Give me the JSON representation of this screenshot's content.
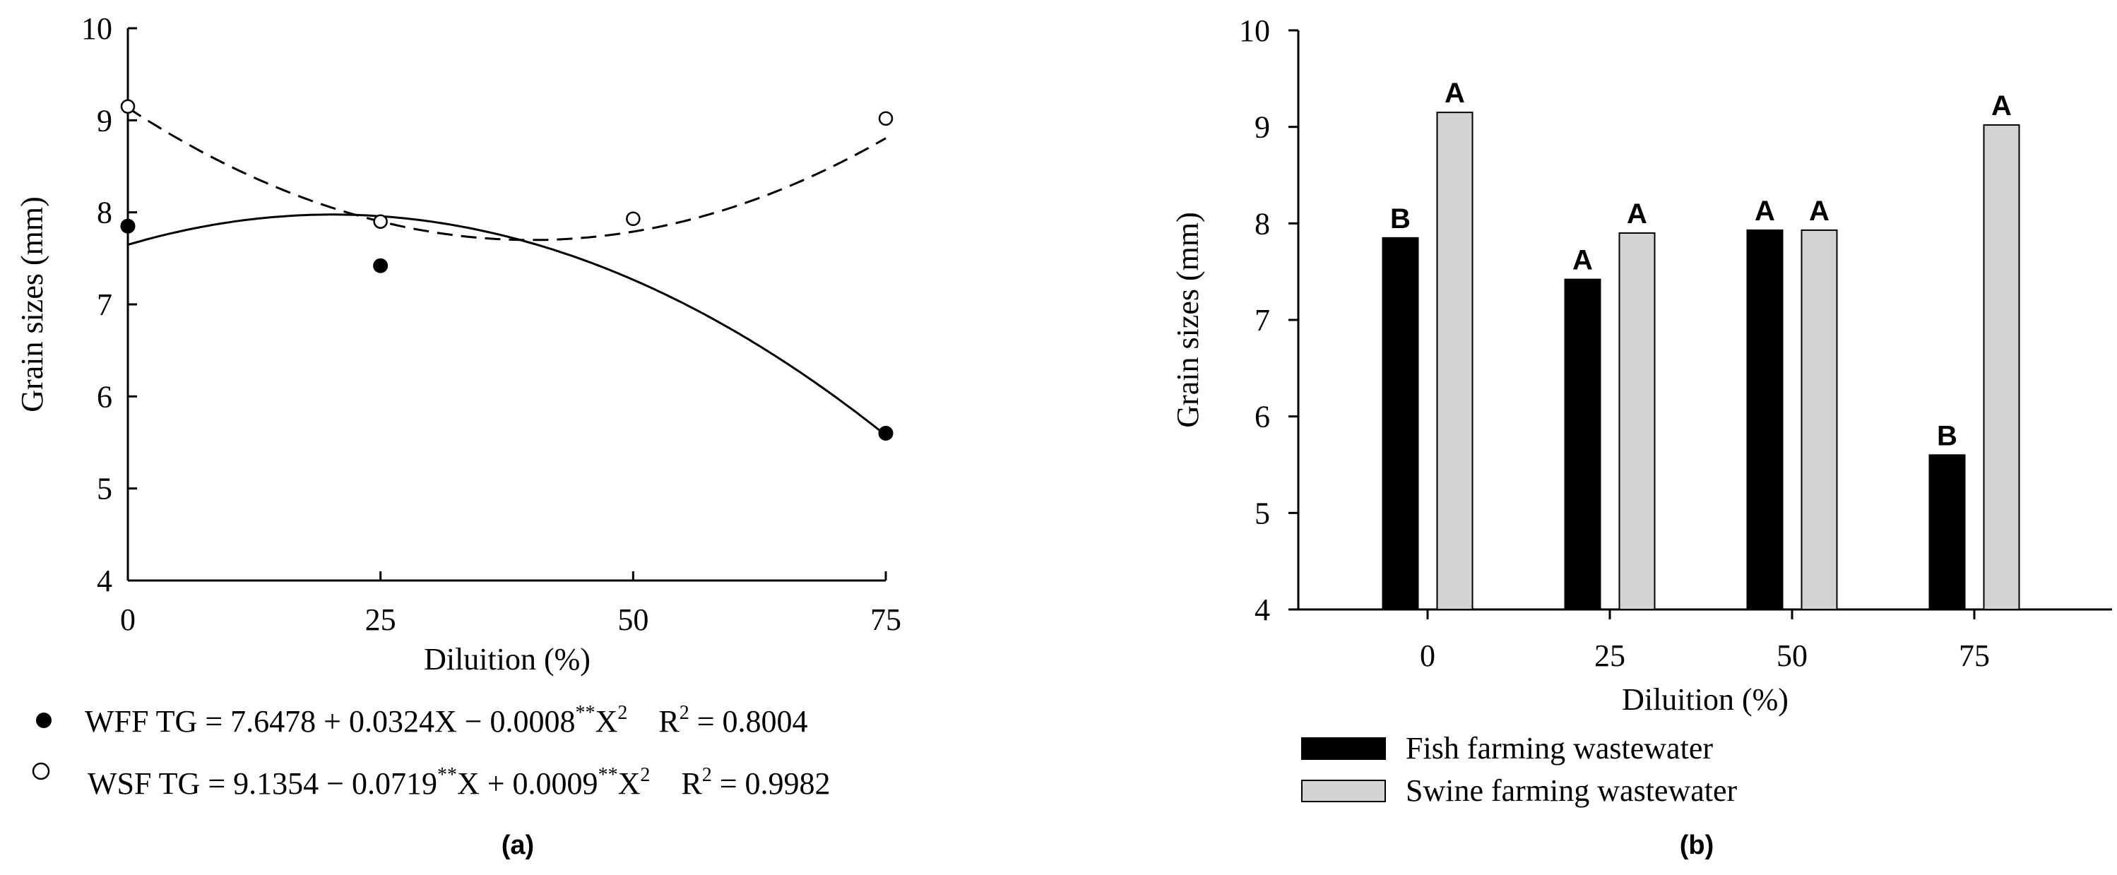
{
  "chart_data": [
    {
      "panel": "(a)",
      "type": "scatter",
      "xlabel": "Diluition (%)",
      "ylabel": "Grain sizes  (mm)",
      "xlim": [
        0,
        75
      ],
      "ylim": [
        4,
        10
      ],
      "x_ticks": [
        0,
        25,
        50,
        75
      ],
      "y_ticks": [
        4,
        5,
        6,
        7,
        8,
        9,
        10
      ],
      "series": [
        {
          "name": "WFF",
          "marker": "filled-circle",
          "line": "solid",
          "points": [
            [
              0,
              7.85
            ],
            [
              25,
              7.42
            ],
            [
              75,
              5.6
            ]
          ],
          "fit": {
            "a": 7.6478,
            "b": 0.0324,
            "c": -0.0008
          },
          "equation": {
            "label": "WFF TG = 7.6478 + 0.0324X  −  0.0008",
            "sup1": "**",
            "mid": "X",
            "sup2": "2",
            "r2_label": "R",
            "r2_sup": "2",
            "r2_value": " = 0.8004"
          }
        },
        {
          "name": "WSF",
          "marker": "open-circle",
          "line": "dashed",
          "points": [
            [
              0,
              9.15
            ],
            [
              25,
              7.9
            ],
            [
              50,
              7.93
            ],
            [
              75,
              9.02
            ]
          ],
          "fit": {
            "a": 9.1354,
            "b": -0.0719,
            "c": 0.0009
          },
          "equation": {
            "label": "WSF TG = 9.1354 − 0.0719",
            "sup0": "**",
            "mid0": "X + 0.0009",
            "sup1": "**",
            "mid": "X",
            "sup2": "2",
            "r2_label": "R",
            "r2_sup": "2",
            "r2_value": " = 0.9982"
          }
        }
      ]
    },
    {
      "panel": "(b)",
      "type": "bar",
      "xlabel": "Diluition (%)",
      "ylabel": "Grain sizes  (mm)",
      "ylim": [
        4,
        10
      ],
      "y_ticks": [
        4,
        5,
        6,
        7,
        8,
        9,
        10
      ],
      "categories": [
        "0",
        "25",
        "50",
        "75"
      ],
      "series": [
        {
          "name": "Fish farming wastewater",
          "color": "#000000",
          "values": [
            7.85,
            7.42,
            7.93,
            5.6
          ],
          "letters": [
            "B",
            "A",
            "A",
            "B"
          ]
        },
        {
          "name": "Swine farming wastewater",
          "color": "#d3d3d3",
          "values": [
            9.15,
            7.9,
            7.93,
            9.02
          ],
          "letters": [
            "A",
            "A",
            "A",
            "A"
          ]
        }
      ]
    }
  ]
}
